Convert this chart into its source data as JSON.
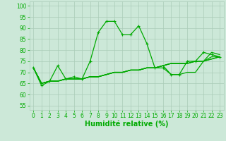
{
  "title": "",
  "xlabel": "Humidité relative (%)",
  "ylabel": "",
  "background_color": "#cce8d8",
  "grid_color": "#aaccb8",
  "line_color": "#00aa00",
  "xlim": [
    -0.5,
    23.5
  ],
  "ylim": [
    53,
    102
  ],
  "yticks": [
    55,
    60,
    65,
    70,
    75,
    80,
    85,
    90,
    95,
    100
  ],
  "xticks": [
    0,
    1,
    2,
    3,
    4,
    5,
    6,
    7,
    8,
    9,
    10,
    11,
    12,
    13,
    14,
    15,
    16,
    17,
    18,
    19,
    20,
    21,
    22,
    23
  ],
  "series_main": [
    72,
    64,
    66,
    73,
    67,
    68,
    67,
    75,
    88,
    93,
    93,
    87,
    87,
    91,
    83,
    72,
    72,
    69,
    69,
    75,
    75,
    79,
    78,
    77
  ],
  "series_flat": [
    [
      72,
      65,
      66,
      66,
      67,
      67,
      67,
      68,
      68,
      69,
      70,
      70,
      71,
      71,
      72,
      72,
      73,
      69,
      69,
      70,
      70,
      75,
      79,
      78
    ],
    [
      72,
      65,
      66,
      66,
      67,
      67,
      67,
      68,
      68,
      69,
      70,
      70,
      71,
      71,
      72,
      72,
      73,
      74,
      74,
      74,
      75,
      75,
      76,
      77
    ],
    [
      72,
      65,
      66,
      66,
      67,
      67,
      67,
      68,
      68,
      69,
      70,
      70,
      71,
      71,
      72,
      72,
      73,
      74,
      74,
      74,
      75,
      75,
      77,
      77
    ],
    [
      72,
      65,
      66,
      66,
      67,
      67,
      67,
      68,
      68,
      69,
      70,
      70,
      71,
      71,
      72,
      72,
      73,
      74,
      74,
      74,
      75,
      75,
      76,
      77
    ]
  ],
  "marker": "+",
  "markersize": 3,
  "linewidth": 0.9,
  "xlabel_fontsize": 7,
  "tick_fontsize": 5.5
}
